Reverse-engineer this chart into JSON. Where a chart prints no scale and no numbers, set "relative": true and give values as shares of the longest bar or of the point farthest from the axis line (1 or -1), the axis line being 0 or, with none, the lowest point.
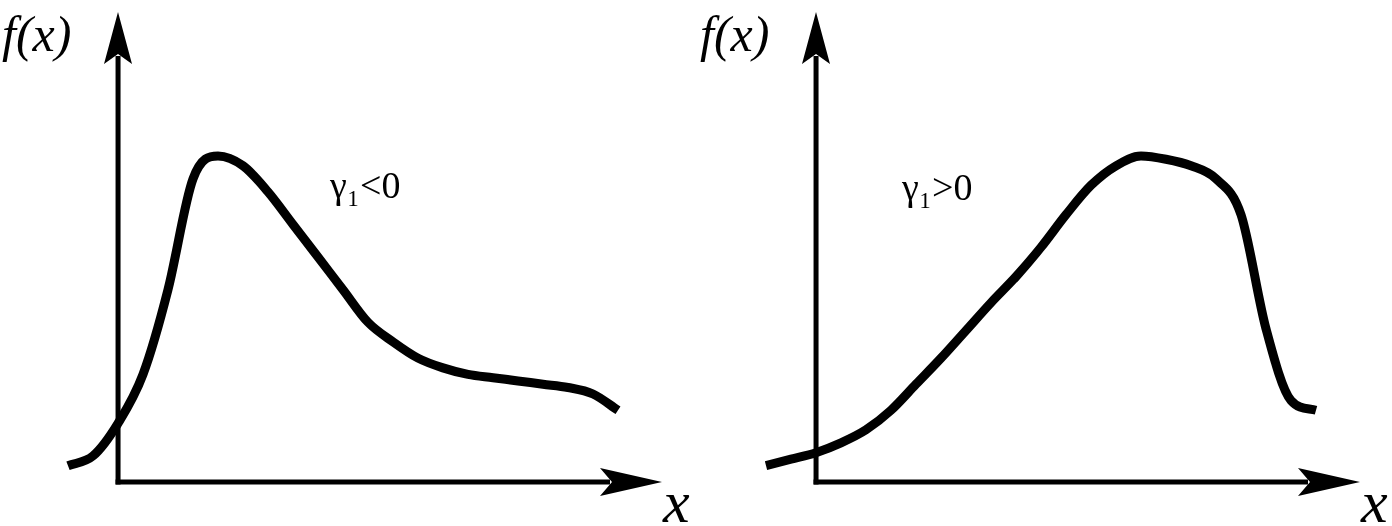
{
  "chart_data": [
    {
      "type": "line",
      "xlabel": "x",
      "ylabel": "f(x)",
      "annotations": [
        "γ₁<0"
      ],
      "relative": true,
      "categories": [
        null,
        null,
        null,
        null,
        null,
        null,
        null,
        null,
        null,
        null,
        null,
        null,
        null,
        null,
        null,
        null,
        null,
        null,
        null,
        null,
        null,
        null,
        null
      ],
      "values": [
        0.05,
        0.08,
        0.18,
        0.33,
        0.59,
        0.93,
        1.0,
        0.97,
        0.89,
        0.79,
        0.69,
        0.59,
        0.49,
        0.43,
        0.38,
        0.35,
        0.33,
        0.32,
        0.31,
        0.3,
        0.29,
        0.27,
        0.22
      ],
      "color": "#000000",
      "marker": "none",
      "line_style": "solid"
    },
    {
      "type": "line",
      "xlabel": "x",
      "ylabel": "f(x)",
      "annotations": [
        "γ₁>0"
      ],
      "relative": true,
      "categories": [
        null,
        null,
        null,
        null,
        null,
        null,
        null,
        null,
        null,
        null,
        null,
        null,
        null,
        null,
        null,
        null,
        null,
        null,
        null,
        null,
        null,
        null,
        null
      ],
      "values": [
        0.05,
        0.07,
        0.09,
        0.12,
        0.16,
        0.22,
        0.3,
        0.38,
        0.465,
        0.55,
        0.63,
        0.72,
        0.82,
        0.91,
        0.97,
        1.0,
        0.99,
        0.97,
        0.93,
        0.82,
        0.47,
        0.25,
        0.22
      ],
      "color": "#000000",
      "marker": "none",
      "line_style": "solid"
    }
  ]
}
